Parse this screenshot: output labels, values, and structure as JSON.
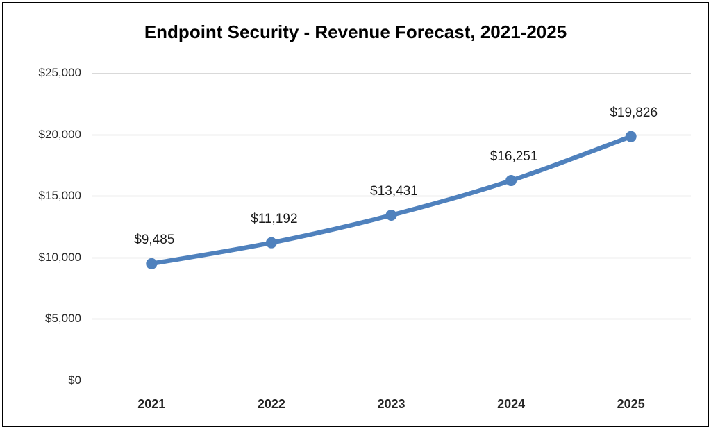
{
  "chart_data": {
    "type": "line",
    "title": "Endpoint Security - Revenue Forecast, 2021-2025",
    "categories": [
      "2021",
      "2022",
      "2023",
      "2024",
      "2025"
    ],
    "series": [
      {
        "name": "Revenue Forecast",
        "values": [
          9485,
          11192,
          13431,
          16251,
          19826
        ]
      }
    ],
    "data_labels": [
      "$9,485",
      "$11,192",
      "$13,431",
      "$16,251",
      "$19,826"
    ],
    "y_tick_labels": [
      "$0",
      "$5,000",
      "$10,000",
      "$15,000",
      "$20,000",
      "$25,000"
    ],
    "y_tick_values": [
      0,
      5000,
      10000,
      15000,
      20000,
      25000
    ],
    "ylim": [
      0,
      25000
    ],
    "xlabel": "",
    "ylabel": "",
    "grid": true,
    "legend": "none",
    "smoothed_line": true,
    "colors": {
      "line": "#4F81BD",
      "marker": "#4F81BD",
      "gridline": "#D9D9D9",
      "text": "#262626",
      "title": "#000000",
      "frame_border": "#000000",
      "background": "#FFFFFF"
    }
  }
}
